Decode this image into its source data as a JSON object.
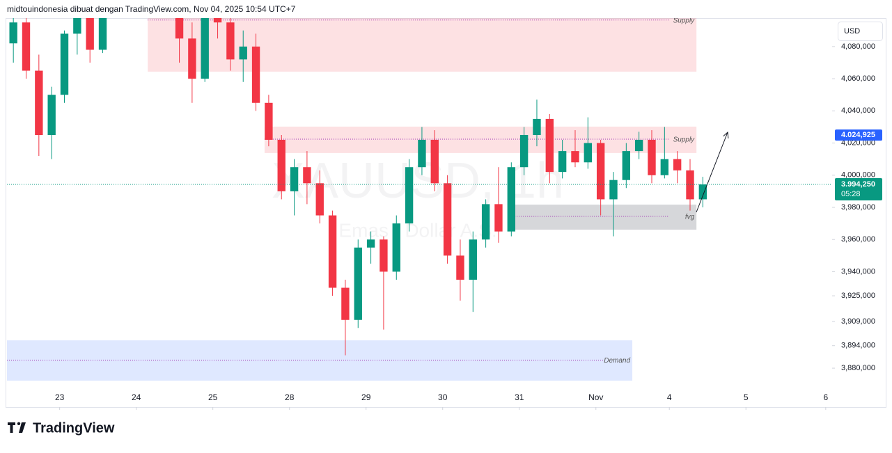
{
  "header": {
    "text": "midtouindonesia dibuat dengan TradingView.com, Nov 04, 2025 10:54 UTC+7"
  },
  "chart_data": {
    "type": "candlestick",
    "watermark": "XAUUSD, 1h",
    "watermark_sub": "Emas / Dollar A.S.",
    "currency": "USD",
    "up_color": "#089981",
    "down_color": "#f23645",
    "x": [
      2,
      6,
      10,
      14,
      18,
      22,
      26,
      30,
      54,
      58,
      62,
      66,
      70,
      74,
      78,
      82,
      86,
      90,
      94,
      98,
      102,
      106,
      110,
      114,
      118,
      122,
      126,
      130,
      134,
      138,
      142,
      146,
      150,
      154,
      158,
      162,
      166,
      170,
      174,
      178,
      182,
      186,
      190,
      194,
      198,
      202,
      206,
      210,
      214,
      218
    ],
    "open": [
      4082000,
      4095000,
      4065000,
      4025000,
      4050000,
      4088000,
      4098000,
      4078000,
      4105000,
      4085000,
      4060000,
      4100000,
      4095000,
      4072000,
      4080000,
      4045000,
      4022000,
      3990000,
      4005000,
      3995000,
      3975000,
      3930000,
      3910000,
      3955000,
      3960000,
      3940000,
      3970000,
      4005000,
      4022000,
      3995000,
      3950000,
      3935000,
      3960000,
      3982000,
      3965000,
      4005000,
      4025000,
      4035000,
      4002000,
      4015000,
      4008000,
      4020000,
      3985000,
      3997000,
      4015000,
      4022000,
      4000000,
      4010000,
      4003000,
      3985000
    ],
    "high": [
      4100000,
      4102000,
      4075000,
      4055000,
      4090000,
      4104000,
      4106000,
      4105000,
      4108000,
      4095000,
      4105000,
      4106000,
      4100000,
      4090000,
      4088000,
      4050000,
      4025000,
      4010000,
      4015000,
      4003000,
      3978000,
      3935000,
      3960000,
      3965000,
      3962000,
      3975000,
      4010000,
      4030000,
      4028000,
      4000000,
      3960000,
      3965000,
      3985000,
      4005000,
      4008000,
      4030000,
      4047000,
      4038000,
      4022000,
      4028000,
      4036000,
      4022000,
      4002000,
      4020000,
      4027000,
      4028000,
      4030000,
      4015000,
      4010000,
      3999000
    ],
    "low": [
      4070000,
      4060000,
      4012000,
      4010000,
      4045000,
      4075000,
      4070000,
      4076000,
      4070000,
      4045000,
      4058000,
      4085000,
      4065000,
      4058000,
      4040000,
      4018000,
      3985000,
      3975000,
      3982000,
      3970000,
      3925000,
      3888000,
      3905000,
      3945000,
      3904000,
      3935000,
      3965000,
      4000000,
      3990000,
      3945000,
      3922000,
      3915000,
      3955000,
      3958000,
      3962000,
      4000000,
      4018000,
      3995000,
      3998000,
      4005000,
      4004000,
      3975000,
      3962000,
      3992000,
      4010000,
      3995000,
      3998000,
      3995000,
      3978000,
      3980000
    ],
    "close": [
      4095000,
      4065000,
      4025000,
      4050000,
      4088000,
      4098000,
      4078000,
      4100000,
      4085000,
      4060000,
      4100000,
      4095000,
      4072000,
      4080000,
      4045000,
      4022000,
      3990000,
      4005000,
      3995000,
      3975000,
      3930000,
      3910000,
      3955000,
      3960000,
      3940000,
      3970000,
      4005000,
      4022000,
      3995000,
      3950000,
      3935000,
      3960000,
      3982000,
      3965000,
      4005000,
      4025000,
      4035000,
      4002000,
      4015000,
      4008000,
      4020000,
      3985000,
      3997000,
      4015000,
      4022000,
      4000000,
      4010000,
      4003000,
      3985000,
      3994250
    ],
    "xlim": [
      0,
      258.5
    ],
    "xticks": [
      {
        "value": 16.5,
        "label": "23"
      },
      {
        "value": 40.5,
        "label": "24"
      },
      {
        "value": 64.5,
        "label": "25"
      },
      {
        "value": 88.5,
        "label": "28"
      },
      {
        "value": 112.5,
        "label": "29"
      },
      {
        "value": 136.5,
        "label": "30"
      },
      {
        "value": 160.5,
        "label": "31"
      },
      {
        "value": 184.5,
        "label": "Nov"
      },
      {
        "value": 207.5,
        "label": "4"
      },
      {
        "value": 231.5,
        "label": "5"
      },
      {
        "value": 256.5,
        "label": "6"
      }
    ],
    "ylim": [
      3855800,
      4097700
    ],
    "yticks": [
      {
        "value": 4080000,
        "label": "4,080,000"
      },
      {
        "value": 4060000,
        "label": "4,060,000"
      },
      {
        "value": 4040000,
        "label": "4,040,000"
      },
      {
        "value": 4020000,
        "label": "4,020,000"
      },
      {
        "value": 4000000,
        "label": "4,000,000"
      },
      {
        "value": 3980000,
        "label": "3,980,000"
      },
      {
        "value": 3960000,
        "label": "3,960,000"
      },
      {
        "value": 3940000,
        "label": "3,940,000"
      },
      {
        "value": 3925000,
        "label": "3,925,000"
      },
      {
        "value": 3909000,
        "label": "3,909,000"
      },
      {
        "value": 3894000,
        "label": "3,894,000"
      },
      {
        "value": 3880000,
        "label": "3,880,000"
      }
    ],
    "last_price": {
      "value": 3994250,
      "label": "3.994,250"
    },
    "countdown": "05:28",
    "price_marker": {
      "value": 4024925,
      "label": "4.024,925"
    },
    "zones": [
      {
        "label": "Supply",
        "color": "rgba(242,54,69,0.15)",
        "x_start": 44.1,
        "x_end": 216,
        "top": 4100000,
        "bottom": 4064400,
        "line": 4096500
      },
      {
        "label": "Supply",
        "color": "rgba(242,54,69,0.15)",
        "x_start": 80.7,
        "x_end": 216,
        "top": 4030200,
        "bottom": 4013800,
        "line": 4022400
      },
      {
        "label": "fvg",
        "color": "rgba(120,123,134,0.3)",
        "x_start": 157.1,
        "x_end": 216,
        "top": 3981700,
        "bottom": 3966100,
        "line": 3974400
      },
      {
        "label": "Demand",
        "color": "rgba(41,98,255,0.15)",
        "x_start": 0,
        "x_end": 195.9,
        "top": 3897300,
        "bottom": 3872200,
        "line": 3885000
      }
    ]
  },
  "footer": {
    "brand": "TradingView"
  }
}
